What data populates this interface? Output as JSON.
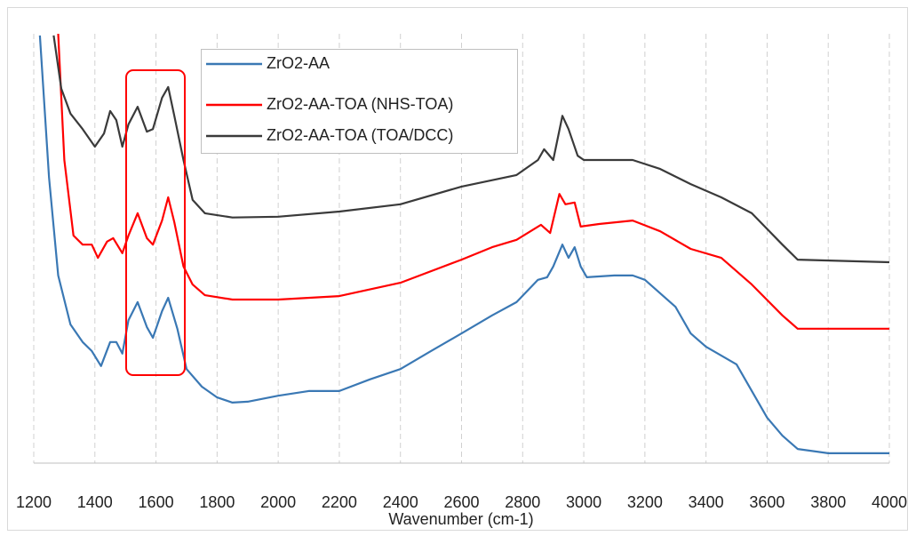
{
  "chart_data": {
    "type": "line",
    "x_label": "Wavenumber (cm-1)",
    "xlim": [
      1200,
      4000
    ],
    "xticks": [
      1200,
      1400,
      1600,
      1800,
      2000,
      2200,
      2400,
      2600,
      2800,
      3000,
      3200,
      3400,
      3600,
      3800,
      4000
    ],
    "ylim": [
      0,
      100
    ],
    "grid": true,
    "legend": "top",
    "series": [
      {
        "name": "ZrO2-AA",
        "color": "#3a78b4",
        "x": [
          1220,
          1250,
          1280,
          1320,
          1360,
          1390,
          1420,
          1450,
          1470,
          1490,
          1510,
          1540,
          1570,
          1590,
          1620,
          1640,
          1670,
          1700,
          1750,
          1800,
          1850,
          1900,
          2000,
          2100,
          2200,
          2300,
          2400,
          2500,
          2600,
          2700,
          2780,
          2850,
          2880,
          2900,
          2930,
          2950,
          2970,
          2990,
          3010,
          3100,
          3160,
          3200,
          3300,
          3350,
          3400,
          3500,
          3600,
          3650,
          3700,
          3800,
          4000
        ],
        "values": [
          99.6,
          66.5,
          43.7,
          32.3,
          28.2,
          26.1,
          22.6,
          28.2,
          28.2,
          25.5,
          33.3,
          37.5,
          31.7,
          29.2,
          35.4,
          38.5,
          31.3,
          21.9,
          17.8,
          15.3,
          14.1,
          14.3,
          15.7,
          16.8,
          16.8,
          19.5,
          21.9,
          26.1,
          30.2,
          34.4,
          37.5,
          42.7,
          43.3,
          45.8,
          50.9,
          47.8,
          50.3,
          45.8,
          43.3,
          43.7,
          43.7,
          42.7,
          36.4,
          30.2,
          27.1,
          23.0,
          10.6,
          6.4,
          3.3,
          2.3,
          2.3
        ]
      },
      {
        "name": "ZrO2-AA-TOA (NHS-TOA)",
        "color": "#ff0000",
        "x": [
          1280,
          1300,
          1330,
          1360,
          1390,
          1410,
          1440,
          1460,
          1490,
          1510,
          1540,
          1570,
          1590,
          1620,
          1640,
          1660,
          1690,
          1720,
          1760,
          1850,
          2000,
          2200,
          2400,
          2600,
          2700,
          2780,
          2860,
          2890,
          2920,
          2940,
          2970,
          2990,
          3050,
          3160,
          3250,
          3350,
          3450,
          3550,
          3650,
          3700,
          4000
        ],
        "values": [
          100.0,
          70.6,
          53.0,
          50.9,
          50.9,
          47.8,
          51.6,
          52.4,
          48.9,
          53.0,
          58.2,
          52.4,
          50.9,
          56.5,
          61.9,
          56.1,
          45.8,
          41.6,
          39.1,
          38.1,
          38.1,
          38.9,
          42.0,
          47.4,
          50.3,
          52.0,
          55.5,
          53.6,
          62.7,
          60.3,
          60.7,
          55.1,
          55.7,
          56.5,
          54.0,
          49.9,
          47.8,
          41.6,
          34.4,
          31.3,
          31.3
        ]
      },
      {
        "name": "ZrO2-AA-TOA (TOA/DCC)",
        "color": "#3a3a3a",
        "x": [
          1265,
          1290,
          1320,
          1360,
          1400,
          1430,
          1450,
          1470,
          1490,
          1510,
          1540,
          1570,
          1590,
          1620,
          1640,
          1660,
          1690,
          1720,
          1760,
          1850,
          2000,
          2200,
          2400,
          2600,
          2780,
          2850,
          2870,
          2900,
          2930,
          2950,
          2980,
          3000,
          3160,
          3250,
          3350,
          3450,
          3550,
          3650,
          3700,
          4000
        ],
        "values": [
          99.6,
          87.2,
          81.4,
          77.8,
          73.7,
          76.8,
          82.0,
          79.9,
          73.7,
          78.9,
          83.0,
          77.2,
          77.8,
          85.1,
          87.6,
          80.9,
          70.6,
          61.3,
          58.2,
          57.2,
          57.4,
          58.6,
          60.3,
          64.4,
          67.1,
          70.6,
          73.1,
          70.6,
          80.9,
          77.8,
          71.6,
          70.6,
          70.6,
          68.5,
          65.0,
          61.9,
          58.2,
          50.9,
          47.4,
          46.8
        ]
      }
    ]
  }
}
